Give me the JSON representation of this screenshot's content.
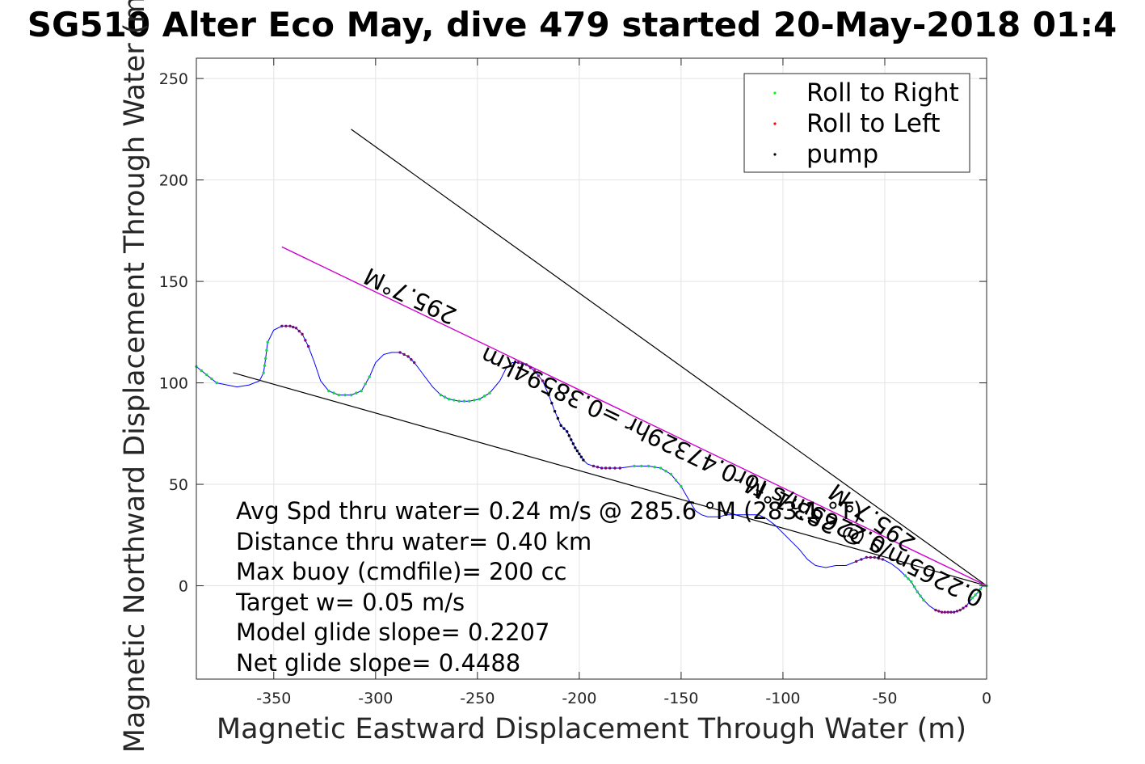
{
  "chart_data": {
    "type": "line",
    "title": "SG510 Alter Eco May, dive 479 started 20-May-2018 01:4",
    "xlabel": "Magnetic Eastward Displacement Through Water (m)",
    "ylabel": "Magnetic Northward Displacement Through Water (m)",
    "xlim": [
      -388,
      0
    ],
    "ylim": [
      -46,
      260
    ],
    "x_ticks": [
      -350,
      -300,
      -250,
      -200,
      -150,
      -100,
      -50,
      0
    ],
    "y_ticks": [
      0,
      50,
      100,
      150,
      200,
      250
    ],
    "x_tick_labels": [
      "-350",
      "-300",
      "-250",
      "-200",
      "-150",
      "-100",
      "-50",
      "0"
    ],
    "y_tick_labels": [
      "0",
      "50",
      "100",
      "150",
      "200",
      "250"
    ],
    "grid": true,
    "legend_position": "top-right",
    "legend": [
      {
        "name": "Roll to Right",
        "color": "#00ff00"
      },
      {
        "name": "Roll to Left",
        "color": "#ff0000"
      },
      {
        "name": "pump",
        "color": "#000000"
      }
    ],
    "colors": {
      "track": "#0000ff",
      "heading_line": "#cc00cc",
      "reference_lines": "#000000",
      "marker_mix": "#7a0a6e"
    },
    "track": {
      "x": [
        -388,
        -383,
        -378,
        -373,
        -368,
        -362,
        -357,
        -355,
        -354,
        -353,
        -350,
        -346,
        -342,
        -339,
        -336,
        -333,
        -330,
        -327,
        -323,
        -318,
        -312,
        -307,
        -303,
        -300,
        -296,
        -292,
        -288,
        -284,
        -281,
        -278,
        -275,
        -272,
        -268,
        -264,
        -259,
        -254,
        -249,
        -244,
        -239,
        -236,
        -233,
        -230,
        -226,
        -222,
        -218,
        -215,
        -212,
        -209,
        -206,
        -204,
        -202,
        -200,
        -198,
        -196,
        -193,
        -189,
        -185,
        -180,
        -173,
        -166,
        -160,
        -155,
        -150,
        -146,
        -143,
        -140,
        -137,
        -134,
        -131,
        -128,
        -124,
        -120,
        -116,
        -112,
        -108,
        -104,
        -100,
        -96,
        -92,
        -88,
        -84,
        -79,
        -74,
        -69,
        -64,
        -59,
        -55,
        -51,
        -47,
        -43,
        -40,
        -37,
        -34,
        -31,
        -28,
        -25,
        -22,
        -19,
        -16,
        -13,
        -10,
        -7,
        -4,
        -2,
        0
      ],
      "y": [
        108,
        104,
        100,
        99,
        98,
        99,
        101,
        105,
        112,
        120,
        126,
        128,
        128,
        127,
        124,
        118,
        110,
        101,
        96,
        94,
        94,
        96,
        103,
        110,
        114,
        115,
        115,
        113,
        110,
        106,
        102,
        98,
        94,
        92,
        91,
        91,
        92,
        95,
        101,
        107,
        110,
        110,
        109,
        106,
        101,
        94,
        86,
        79,
        76,
        72,
        68,
        65,
        62,
        60,
        59,
        58,
        58,
        58,
        59,
        59,
        58,
        55,
        49,
        42,
        37,
        35,
        34,
        34,
        34,
        35,
        35,
        35,
        35,
        35,
        33,
        30,
        26,
        22,
        18,
        13,
        10,
        9,
        10,
        10,
        12,
        14,
        14,
        13,
        11,
        8,
        5,
        2,
        -3,
        -7,
        -10,
        -12,
        -13,
        -13,
        -13,
        -12,
        -10,
        -6,
        -3,
        0,
        0
      ]
    },
    "heading_line": {
      "x": [
        -346,
        0
      ],
      "y": [
        167,
        0
      ]
    },
    "reference_lines": [
      {
        "x": [
          -312,
          0
        ],
        "y": [
          225,
          0
        ]
      },
      {
        "x": [
          -370,
          0
        ],
        "y": [
          105,
          0
        ]
      }
    ],
    "annotations": {
      "heading": "295.7°M",
      "heading_distance": "0.2265m/s for0.47329hr =0.38594km",
      "current": "0.2265m/s @ 283.1°M",
      "current_heading": "295.7°M"
    },
    "stats": [
      "Avg Spd thru water=  0.24 m/s @ 285.6 °M (283.1 °T)",
      "Distance thru water=  0.40 km",
      "Max buoy (cmdfile)= 200 cc",
      "Target w= 0.05 m/s",
      "Model glide slope= 0.2207",
      "Net glide slope= 0.4488"
    ]
  }
}
